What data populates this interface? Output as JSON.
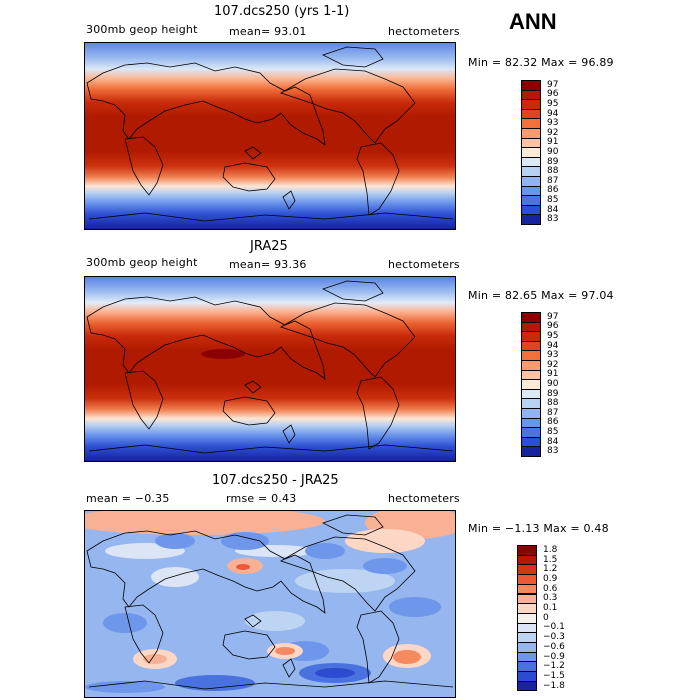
{
  "season": "ANN",
  "panels": [
    {
      "title": "107.dcs250 (yrs 1-1)",
      "left_label": "300mb geop height",
      "mid_label": "mean=  93.01",
      "units": "hectometers",
      "minmax": "Min =  82.32 Max =  96.89",
      "levels": [
        "97",
        "96",
        "95",
        "94",
        "93",
        "92",
        "91",
        "90",
        "89",
        "88",
        "87",
        "86",
        "85",
        "84",
        "83"
      ],
      "colors": [
        "#8b0000",
        "#b01a00",
        "#c82a0a",
        "#e0451e",
        "#f2703a",
        "#fa9a6e",
        "#fcc4a4",
        "#fdebd8",
        "#dce9f7",
        "#b7d1f3",
        "#8fb4ef",
        "#6a96ea",
        "#4a74e0",
        "#2b4fd3",
        "#16239f"
      ]
    },
    {
      "title": "JRA25",
      "left_label": "300mb geop height",
      "mid_label": "mean=  93.36",
      "units": "hectometers",
      "minmax": "Min =  82.65 Max =  97.04",
      "levels": [
        "97",
        "96",
        "95",
        "94",
        "93",
        "92",
        "91",
        "90",
        "89",
        "88",
        "87",
        "86",
        "85",
        "84",
        "83"
      ],
      "colors": [
        "#8b0000",
        "#b01a00",
        "#c82a0a",
        "#e0451e",
        "#f2703a",
        "#fa9a6e",
        "#fcc4a4",
        "#fdebd8",
        "#dce9f7",
        "#b7d1f3",
        "#8fb4ef",
        "#6a96ea",
        "#4a74e0",
        "#2b4fd3",
        "#16239f"
      ]
    },
    {
      "title": "107.dcs250 - JRA25",
      "left_label": "mean =  −0.35",
      "mid_label": "rmse =    0.43",
      "units": "hectometers",
      "minmax": "Min =  −1.13 Max =    0.48",
      "levels": [
        "1.8",
        "1.5",
        "1.2",
        "0.9",
        "0.6",
        "0.3",
        "0.1",
        "0",
        "−0.1",
        "−0.3",
        "−0.6",
        "−0.9",
        "−1.2",
        "−1.5",
        "−1.8"
      ],
      "colors": [
        "#8b0000",
        "#b01a00",
        "#d6341a",
        "#ec5a34",
        "#f58a60",
        "#f9b195",
        "#fcd7c6",
        "#f5f1ea",
        "#dbe5f5",
        "#bed4f3",
        "#95b6ef",
        "#6e96ea",
        "#4a72df",
        "#2b4cd0",
        "#1a239d"
      ]
    }
  ]
}
